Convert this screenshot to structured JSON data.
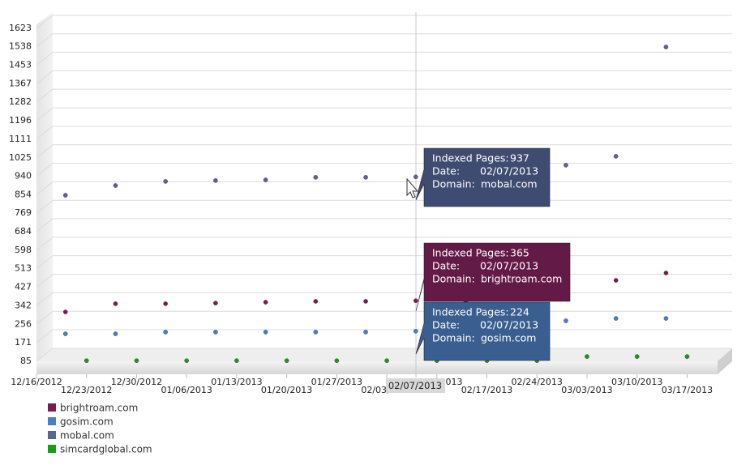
{
  "chart_data": {
    "type": "scatter",
    "ylim": [
      0,
      1623
    ],
    "yticks": [
      85,
      171,
      256,
      342,
      427,
      513,
      598,
      684,
      769,
      854,
      940,
      1025,
      1111,
      1196,
      1282,
      1367,
      1453,
      1538,
      1623
    ],
    "xlim": [
      0,
      13
    ],
    "xticks": [
      {
        "value": 0,
        "label": "12/16/2012"
      },
      {
        "value": 1,
        "label": "12/23/2012"
      },
      {
        "value": 2,
        "label": "12/30/2012"
      },
      {
        "value": 3,
        "label": "01/06/2013"
      },
      {
        "value": 4,
        "label": "01/13/2013"
      },
      {
        "value": 5,
        "label": "01/20/2013"
      },
      {
        "value": 6,
        "label": "01/27/2013"
      },
      {
        "value": 7,
        "label": "02/03/2013"
      },
      {
        "value": 8,
        "label": "02/10/2013"
      },
      {
        "value": 9,
        "label": "02/17/2013"
      },
      {
        "value": 10,
        "label": "02/24/2013"
      },
      {
        "value": 11,
        "label": "03/03/2013"
      },
      {
        "value": 12,
        "label": "03/10/2013"
      },
      {
        "value": 13,
        "label": "03/17/2013"
      }
    ],
    "grid": true,
    "x": [
      1,
      2,
      3,
      4,
      5,
      6,
      7,
      8,
      9,
      10,
      11,
      12,
      13
    ],
    "series": [
      {
        "name": "brightroam.com",
        "color": "#7a1a4e",
        "values": [
          313,
          351,
          351,
          354,
          358,
          362,
          362,
          365,
          362,
          null,
          null,
          459,
          493
        ]
      },
      {
        "name": "gosim.com",
        "color": "#4a7fc1",
        "values": [
          212,
          212,
          220,
          220,
          220,
          220,
          220,
          224,
          null,
          null,
          272,
          283,
          283
        ]
      },
      {
        "name": "mobal.com",
        "color": "#5a6494",
        "values": [
          852,
          897,
          916,
          920,
          923,
          935,
          935,
          937,
          null,
          null,
          991,
          1032,
          1537
        ]
      },
      {
        "name": "simcardglobal.com",
        "color": "#1a9a1a",
        "values": [
          88,
          88,
          88,
          88,
          88,
          88,
          88,
          88,
          88,
          88,
          107,
          107,
          107
        ]
      }
    ],
    "crosshair_label": "02/07/2013",
    "tooltip_labels": [
      "Indexed Pages:",
      "Date:",
      "Domain:"
    ],
    "tooltips": [
      {
        "value": 937,
        "date": "02/07/2013",
        "domain": "mobal.com"
      },
      {
        "value": 365,
        "date": "02/07/2013",
        "domain": "brightroam.com"
      },
      {
        "value": 224,
        "date": "02/07/2013",
        "domain": "gosim.com"
      }
    ]
  }
}
